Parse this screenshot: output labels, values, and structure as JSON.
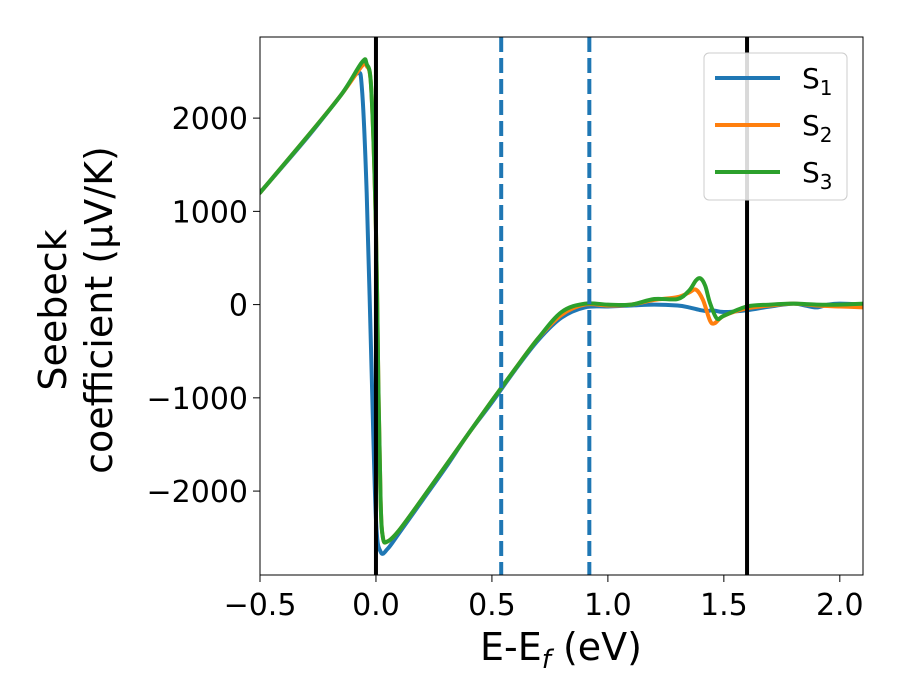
{
  "chart_data": {
    "type": "line",
    "xlabel": "E-E",
    "xlabel_sub": "f",
    "xlabel_unit": " (eV)",
    "ylabel_line1": "Seebeck",
    "ylabel_line2": "coefficient  (μV/K)",
    "xlim": [
      -0.5,
      2.1
    ],
    "ylim": [
      -2900,
      2870
    ],
    "xticks": [
      -0.5,
      0.0,
      0.5,
      1.0,
      1.5,
      2.0
    ],
    "xtick_labels": [
      "−0.5",
      "0.0",
      "0.5",
      "1.0",
      "1.5",
      "2.0"
    ],
    "yticks": [
      -2000,
      -1000,
      0,
      1000,
      2000
    ],
    "ytick_labels": [
      "−2000",
      "−1000",
      "0",
      "1000",
      "2000"
    ],
    "grid": false,
    "legend_position": "top-right",
    "vlines": [
      {
        "x": 0.0,
        "color": "#000000",
        "style": "solid"
      },
      {
        "x": 1.6,
        "color": "#000000",
        "style": "solid"
      },
      {
        "x": 0.54,
        "color": "#1f77b4",
        "style": "dashed"
      },
      {
        "x": 0.92,
        "color": "#1f77b4",
        "style": "dashed"
      }
    ],
    "series": [
      {
        "name": "S",
        "sub": "1",
        "color": "#1f77b4",
        "x": [
          -0.5,
          -0.3,
          -0.15,
          -0.08,
          -0.06,
          -0.04,
          -0.02,
          0.0,
          0.02,
          0.05,
          0.1,
          0.2,
          0.3,
          0.4,
          0.5,
          0.6,
          0.7,
          0.8,
          0.9,
          1.0,
          1.1,
          1.2,
          1.3,
          1.35,
          1.4,
          1.43,
          1.45,
          1.5,
          1.6,
          1.7,
          1.8,
          1.85,
          1.9,
          1.95,
          2.0,
          2.1
        ],
        "y": [
          1200,
          1780,
          2250,
          2480,
          2300,
          1200,
          -600,
          -2300,
          -2650,
          -2620,
          -2450,
          -2100,
          -1750,
          -1380,
          -1050,
          -700,
          -380,
          -140,
          -30,
          -20,
          -10,
          0,
          -10,
          -30,
          -60,
          -70,
          -60,
          -80,
          -60,
          -20,
          10,
          -10,
          -30,
          0,
          10,
          0
        ]
      },
      {
        "name": "S",
        "sub": "2",
        "color": "#ff7f0e",
        "x": [
          -0.5,
          -0.3,
          -0.15,
          -0.06,
          -0.04,
          -0.02,
          0.0,
          0.01,
          0.02,
          0.03,
          0.05,
          0.1,
          0.2,
          0.3,
          0.4,
          0.5,
          0.6,
          0.7,
          0.8,
          0.9,
          1.0,
          1.1,
          1.2,
          1.3,
          1.35,
          1.38,
          1.41,
          1.44,
          1.46,
          1.5,
          1.6,
          1.7,
          1.8,
          1.9,
          2.0,
          2.1
        ],
        "y": [
          1200,
          1790,
          2250,
          2560,
          2560,
          2300,
          800,
          -800,
          -2100,
          -2500,
          -2540,
          -2420,
          -2080,
          -1730,
          -1380,
          -1030,
          -690,
          -360,
          -110,
          0,
          -10,
          0,
          50,
          80,
          130,
          160,
          50,
          -170,
          -200,
          -120,
          -40,
          -10,
          10,
          -10,
          -20,
          -30
        ]
      },
      {
        "name": "S",
        "sub": "3",
        "color": "#2ca02c",
        "x": [
          -0.5,
          -0.3,
          -0.15,
          -0.06,
          -0.04,
          -0.02,
          0.0,
          0.01,
          0.02,
          0.03,
          0.05,
          0.1,
          0.2,
          0.3,
          0.4,
          0.5,
          0.6,
          0.7,
          0.8,
          0.9,
          1.0,
          1.1,
          1.2,
          1.3,
          1.35,
          1.38,
          1.4,
          1.42,
          1.44,
          1.47,
          1.5,
          1.6,
          1.7,
          1.8,
          1.9,
          2.0,
          2.1
        ],
        "y": [
          1200,
          1790,
          2250,
          2600,
          2580,
          2300,
          800,
          -800,
          -2100,
          -2500,
          -2540,
          -2420,
          -2080,
          -1730,
          -1380,
          -1030,
          -690,
          -360,
          -80,
          10,
          0,
          0,
          60,
          60,
          150,
          260,
          280,
          200,
          20,
          -150,
          -120,
          -20,
          0,
          10,
          0,
          0,
          10
        ]
      }
    ]
  }
}
